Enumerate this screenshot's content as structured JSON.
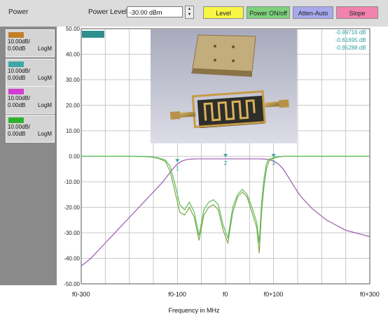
{
  "toolbar": {
    "title": "Power",
    "power_level_label": "Power Level",
    "power_level_value": "-30.00 dBm",
    "buttons": {
      "level": "Level",
      "power": "Power ON/off",
      "atten": "Atten-Auto",
      "slope": "Slope"
    }
  },
  "traces": [
    {
      "scale": "10.00dB/",
      "ref": "0.00dB",
      "format": "LogM",
      "color": "#c37f28"
    },
    {
      "scale": "10.00dB/",
      "ref": "0.00dB",
      "format": "LogM",
      "color": "#3fa6a6"
    },
    {
      "scale": "10.00dB/",
      "ref": "0.00dB",
      "format": "LogM",
      "color": "#d23ed2"
    },
    {
      "scale": "10.00dB/",
      "ref": "0.00dB",
      "format": "LogM",
      "color": "#2fb02f"
    }
  ],
  "readouts": [
    "-0.99716 dB",
    "-0.61695 dB",
    "-0.95288 dB"
  ],
  "chart_data": {
    "type": "line",
    "xlabel": "Frequency in MHz",
    "xlim": [
      -300,
      300
    ],
    "ylim": [
      -50,
      50
    ],
    "x_tick_labels": [
      "f0-300",
      "f0-100",
      "f0",
      "f0+100",
      "f0+300"
    ],
    "x_tick_values": [
      -300,
      -100,
      0,
      100,
      300
    ],
    "y_ticks": [
      50,
      40,
      30,
      20,
      10,
      0,
      -10,
      -20,
      -30,
      -40,
      -50
    ],
    "y_tick_labels": [
      "50.00",
      "40.00",
      "30.00",
      "20.00",
      "10.00",
      "0.00",
      "-10.00",
      "-20.00",
      "-30.00",
      "-40.00",
      "-50.00"
    ],
    "markers": [
      {
        "label": "1",
        "x": -100,
        "y": -3
      },
      {
        "label": "2",
        "x": 0,
        "y": -1
      },
      {
        "label": "3",
        "x": 100,
        "y": -1
      }
    ],
    "series": [
      {
        "color": "#9a59b0",
        "x": [
          -300,
          -290,
          -280,
          -270,
          -260,
          -250,
          -240,
          -230,
          -220,
          -210,
          -200,
          -190,
          -180,
          -170,
          -160,
          -150,
          -140,
          -130,
          -120,
          -110,
          -100,
          -90,
          -80,
          -70,
          -60,
          -50,
          -40,
          -30,
          -20,
          -10,
          0,
          10,
          20,
          30,
          40,
          50,
          60,
          70,
          80,
          90,
          100,
          110,
          120,
          130,
          140,
          150,
          160,
          170,
          180,
          190,
          200,
          210,
          220,
          230,
          240,
          250,
          260,
          270,
          280,
          290,
          300
        ],
        "values": [
          -43,
          -41.5,
          -40,
          -38,
          -36,
          -34,
          -32,
          -30,
          -28,
          -26,
          -24,
          -22,
          -20,
          -18,
          -16,
          -14,
          -12,
          -10,
          -7.5,
          -5,
          -3,
          -1.8,
          -1.3,
          -1.1,
          -1.0,
          -1.0,
          -1.0,
          -1.0,
          -1.0,
          -1.0,
          -1.0,
          -1.0,
          -1.0,
          -1.0,
          -1.0,
          -1.0,
          -1.0,
          -1.0,
          -1.1,
          -1.3,
          -1.8,
          -3,
          -5,
          -8,
          -11,
          -14,
          -16.5,
          -18.5,
          -20.5,
          -22,
          -23.5,
          -25,
          -26,
          -27,
          -28,
          -29,
          -29.5,
          -30,
          -30.5,
          -31,
          -31.5
        ]
      },
      {
        "color": "#7fa84a",
        "x": [
          -300,
          -260,
          -220,
          -190,
          -160,
          -140,
          -125,
          -115,
          -105,
          -95,
          -85,
          -75,
          -65,
          -55,
          -45,
          -35,
          -25,
          -15,
          -5,
          5,
          15,
          25,
          35,
          45,
          55,
          65,
          70,
          75,
          80,
          85,
          90,
          100,
          110,
          120,
          140,
          180,
          220,
          260,
          300
        ],
        "values": [
          0,
          0,
          0,
          0,
          -0.2,
          -0.8,
          -2,
          -6,
          -14,
          -22,
          -23,
          -20,
          -24,
          -33,
          -23,
          -20,
          -19,
          -21,
          -29,
          -34,
          -22,
          -16,
          -14,
          -16,
          -22,
          -28,
          -38,
          -22,
          -12,
          -5,
          -2,
          -0.8,
          -0.3,
          0,
          0,
          0,
          0,
          0,
          0
        ]
      },
      {
        "color": "#5bbf5b",
        "x": [
          -300,
          -260,
          -220,
          -190,
          -160,
          -140,
          -125,
          -115,
          -105,
          -95,
          -85,
          -75,
          -65,
          -55,
          -45,
          -35,
          -25,
          -15,
          -5,
          5,
          15,
          25,
          35,
          45,
          55,
          65,
          70,
          75,
          80,
          85,
          90,
          100,
          110,
          120,
          140,
          180,
          220,
          260,
          300
        ],
        "values": [
          0,
          0,
          0,
          0,
          -0.1,
          -0.6,
          -1.5,
          -4,
          -11,
          -19,
          -21,
          -18,
          -22,
          -31,
          -21,
          -18,
          -17,
          -19,
          -27,
          -32,
          -20,
          -15,
          -13,
          -15,
          -20,
          -26,
          -34,
          -18,
          -9,
          -3,
          -1.2,
          -0.5,
          -0.2,
          0,
          0,
          0,
          0,
          0,
          0
        ]
      }
    ]
  }
}
